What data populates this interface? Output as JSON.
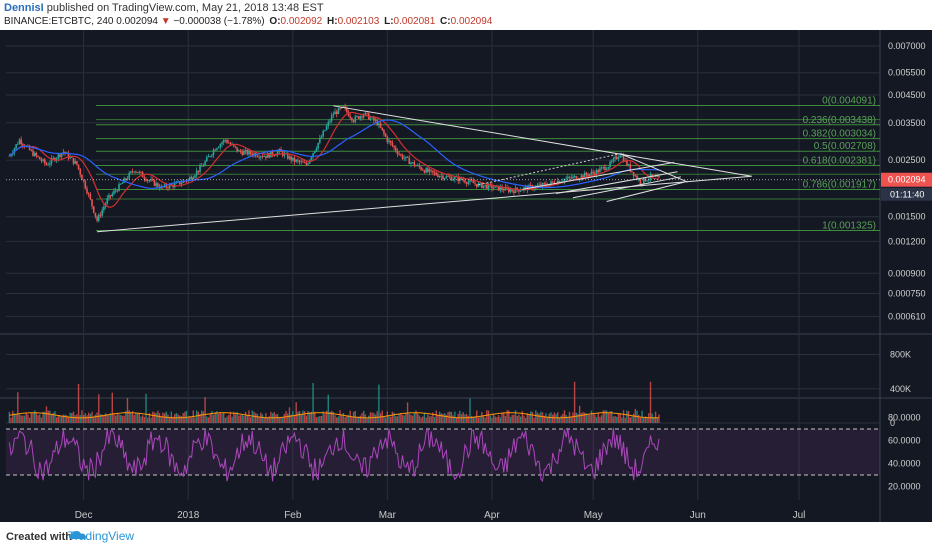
{
  "header": {
    "author": "DennisI",
    "published_text": "published on TradingView.com, May 21, 2018 13:48 EST",
    "symbol": "BINANCE:ETCBTC, 240",
    "last": "0.002094",
    "change": "−0.000038 (−1.78%)",
    "o_label": "O:",
    "o_value": "0.002092",
    "h_label": "H:",
    "h_value": "0.002103",
    "l_label": "L:",
    "l_value": "0.002081",
    "c_label": "C:",
    "c_value": "0.002094"
  },
  "footer": {
    "created_with": "Created with",
    "brand": "TradingView"
  },
  "colors": {
    "background": "#141823",
    "grid": "#2a2f3d",
    "fib": "#3d8b3d",
    "fib_label": "#5aa05a",
    "up": "#26a69a",
    "down": "#ef5350",
    "ma_fast": "#d32f2f",
    "ma_slow": "#2962ff",
    "rsi": "#ab47bc",
    "vol_ma": "#ff9800"
  },
  "chart_data": [
    {
      "type": "candlestick",
      "price_axis_labels": [
        "0.007000",
        "0.005500",
        "0.004500",
        "0.003500",
        "0.002500",
        "0.001500",
        "0.001200",
        "0.000900",
        "0.000750",
        "0.000610"
      ],
      "price_scale": "log",
      "x_labels": [
        "Dec",
        "2018",
        "Feb",
        "Mar",
        "Apr",
        "May",
        "Jun",
        "Jul"
      ],
      "current_price_label": "0.002094",
      "countdown_label": "01:11:40",
      "fib_levels": [
        {
          "label": "0(0.004091)",
          "value": 0.004091
        },
        {
          "label": "0.236(0.003438)",
          "value": 0.003438
        },
        {
          "label": "0.382(0.003034)",
          "value": 0.003034
        },
        {
          "label": "0.5(0.002708)",
          "value": 0.002708
        },
        {
          "label": "0.618(0.002381)",
          "value": 0.002381
        },
        {
          "label": "0.786(0.001917)",
          "value": 0.001917
        },
        {
          "label": "1(0.001325)",
          "value": 0.001325
        }
      ],
      "fib_extra_lines": [
        0.0036,
        0.0022,
        0.00176
      ],
      "series_close": [
        {
          "date": "2017-11-09",
          "value": 0.0026
        },
        {
          "date": "2017-11-12",
          "value": 0.003
        },
        {
          "date": "2017-11-16",
          "value": 0.00265
        },
        {
          "date": "2017-11-20",
          "value": 0.0024
        },
        {
          "date": "2017-11-25",
          "value": 0.0027
        },
        {
          "date": "2017-11-29",
          "value": 0.0024
        },
        {
          "date": "2017-12-02",
          "value": 0.0019
        },
        {
          "date": "2017-12-05",
          "value": 0.00145
        },
        {
          "date": "2017-12-08",
          "value": 0.00175
        },
        {
          "date": "2017-12-12",
          "value": 0.002
        },
        {
          "date": "2017-12-16",
          "value": 0.0023
        },
        {
          "date": "2017-12-20",
          "value": 0.0021
        },
        {
          "date": "2017-12-24",
          "value": 0.00195
        },
        {
          "date": "2017-12-28",
          "value": 0.002
        },
        {
          "date": "2018-01-01",
          "value": 0.0021
        },
        {
          "date": "2018-01-05",
          "value": 0.00235
        },
        {
          "date": "2018-01-09",
          "value": 0.0028
        },
        {
          "date": "2018-01-12",
          "value": 0.003
        },
        {
          "date": "2018-01-16",
          "value": 0.0027
        },
        {
          "date": "2018-01-20",
          "value": 0.00265
        },
        {
          "date": "2018-01-24",
          "value": 0.0026
        },
        {
          "date": "2018-01-28",
          "value": 0.0027
        },
        {
          "date": "2018-02-01",
          "value": 0.0025
        },
        {
          "date": "2018-02-05",
          "value": 0.0024
        },
        {
          "date": "2018-02-09",
          "value": 0.003
        },
        {
          "date": "2018-02-13",
          "value": 0.0038
        },
        {
          "date": "2018-02-16",
          "value": 0.004
        },
        {
          "date": "2018-02-19",
          "value": 0.0036
        },
        {
          "date": "2018-02-22",
          "value": 0.0038
        },
        {
          "date": "2018-02-26",
          "value": 0.0035
        },
        {
          "date": "2018-03-01",
          "value": 0.003
        },
        {
          "date": "2018-03-05",
          "value": 0.0026
        },
        {
          "date": "2018-03-09",
          "value": 0.0024
        },
        {
          "date": "2018-03-13",
          "value": 0.00225
        },
        {
          "date": "2018-03-18",
          "value": 0.00215
        },
        {
          "date": "2018-03-23",
          "value": 0.0021
        },
        {
          "date": "2018-03-28",
          "value": 0.002
        },
        {
          "date": "2018-04-02",
          "value": 0.00195
        },
        {
          "date": "2018-04-07",
          "value": 0.0019
        },
        {
          "date": "2018-04-12",
          "value": 0.00195
        },
        {
          "date": "2018-04-17",
          "value": 0.002
        },
        {
          "date": "2018-04-22",
          "value": 0.0021
        },
        {
          "date": "2018-04-27",
          "value": 0.00215
        },
        {
          "date": "2018-05-02",
          "value": 0.00225
        },
        {
          "date": "2018-05-06",
          "value": 0.0024
        },
        {
          "date": "2018-05-09",
          "value": 0.00265
        },
        {
          "date": "2018-05-12",
          "value": 0.0023
        },
        {
          "date": "2018-05-15",
          "value": 0.00205
        },
        {
          "date": "2018-05-18",
          "value": 0.00215
        },
        {
          "date": "2018-05-21",
          "value": 0.002094
        }
      ],
      "indicators": [
        "moving average (fast)",
        "moving average (slow)"
      ]
    },
    {
      "type": "bar",
      "name": "volume",
      "axis_labels": [
        "800K",
        "400K",
        "0"
      ],
      "ylim": [
        0,
        900000
      ]
    },
    {
      "type": "line",
      "name": "RSI",
      "axis_labels": [
        "80.0000",
        "60.0000",
        "40.0000",
        "20.0000"
      ],
      "ylim": [
        10,
        90
      ],
      "bands": [
        70,
        30
      ]
    }
  ]
}
